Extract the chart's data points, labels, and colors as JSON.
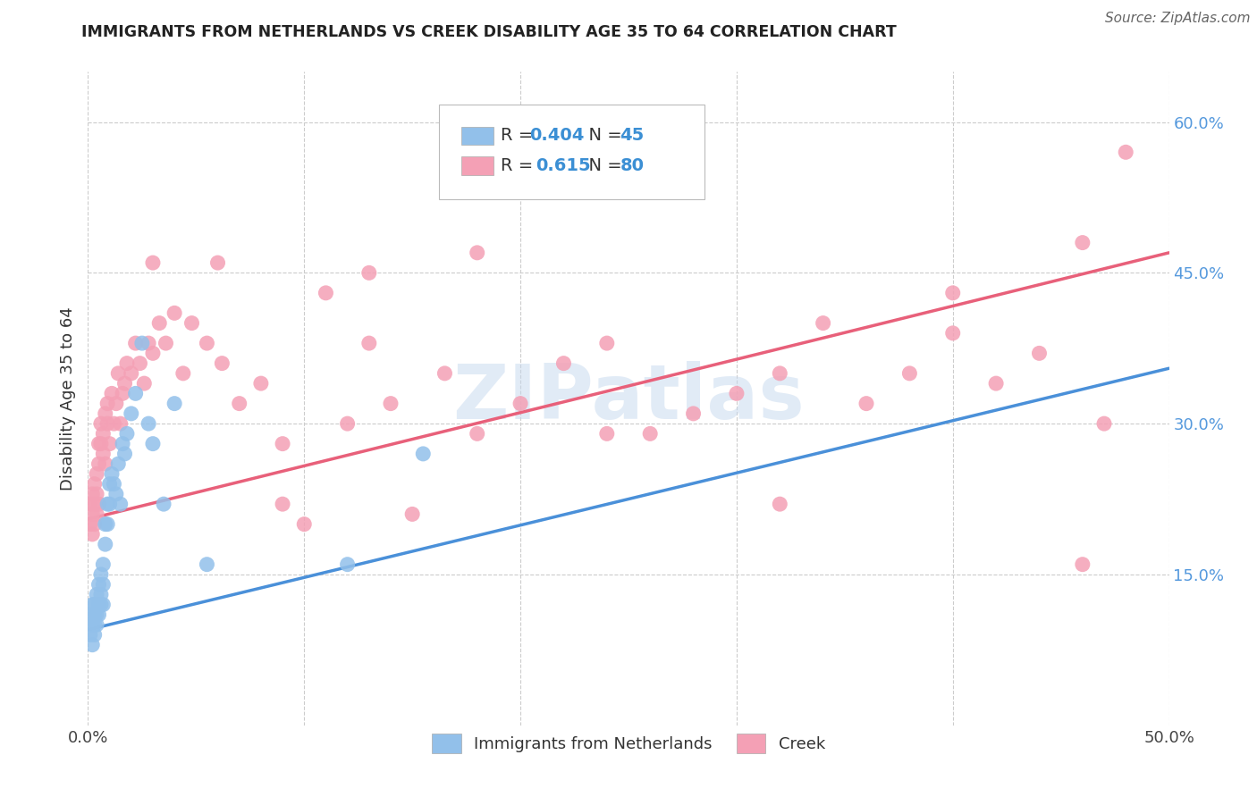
{
  "title": "IMMIGRANTS FROM NETHERLANDS VS CREEK DISABILITY AGE 35 TO 64 CORRELATION CHART",
  "source": "Source: ZipAtlas.com",
  "ylabel": "Disability Age 35 to 64",
  "xlim": [
    0.0,
    0.5
  ],
  "ylim": [
    0.0,
    0.65
  ],
  "xtick_positions": [
    0.0,
    0.1,
    0.2,
    0.3,
    0.4,
    0.5
  ],
  "xtick_labels": [
    "0.0%",
    "",
    "",
    "",
    "",
    "50.0%"
  ],
  "ytick_vals_right": [
    0.15,
    0.3,
    0.45,
    0.6
  ],
  "ytick_labels_right": [
    "15.0%",
    "30.0%",
    "45.0%",
    "60.0%"
  ],
  "legend_r1": "R = 0.404",
  "legend_n1": "N = 45",
  "legend_r2": "R =  0.615",
  "legend_n2": "N = 80",
  "color_netherlands": "#92C0EA",
  "color_creek": "#F4A0B5",
  "color_netherlands_line": "#4A90D9",
  "color_creek_line": "#E8607A",
  "nl_line_start_y": 0.095,
  "nl_line_end_y": 0.355,
  "cr_line_start_y": 0.205,
  "cr_line_end_y": 0.47,
  "netherlands_x": [
    0.001,
    0.001,
    0.002,
    0.002,
    0.002,
    0.003,
    0.003,
    0.003,
    0.003,
    0.004,
    0.004,
    0.004,
    0.005,
    0.005,
    0.005,
    0.006,
    0.006,
    0.006,
    0.007,
    0.007,
    0.007,
    0.008,
    0.008,
    0.009,
    0.009,
    0.01,
    0.01,
    0.011,
    0.012,
    0.013,
    0.014,
    0.015,
    0.016,
    0.017,
    0.018,
    0.02,
    0.022,
    0.025,
    0.028,
    0.03,
    0.035,
    0.04,
    0.055,
    0.12,
    0.155
  ],
  "netherlands_y": [
    0.09,
    0.11,
    0.1,
    0.12,
    0.08,
    0.1,
    0.12,
    0.11,
    0.09,
    0.13,
    0.11,
    0.1,
    0.14,
    0.12,
    0.11,
    0.15,
    0.13,
    0.12,
    0.16,
    0.14,
    0.12,
    0.2,
    0.18,
    0.22,
    0.2,
    0.24,
    0.22,
    0.25,
    0.24,
    0.23,
    0.26,
    0.22,
    0.28,
    0.27,
    0.29,
    0.31,
    0.33,
    0.38,
    0.3,
    0.28,
    0.22,
    0.32,
    0.16,
    0.16,
    0.27
  ],
  "creek_x": [
    0.001,
    0.001,
    0.002,
    0.002,
    0.002,
    0.003,
    0.003,
    0.003,
    0.004,
    0.004,
    0.004,
    0.005,
    0.005,
    0.005,
    0.006,
    0.006,
    0.007,
    0.007,
    0.008,
    0.008,
    0.009,
    0.009,
    0.01,
    0.011,
    0.012,
    0.013,
    0.014,
    0.015,
    0.016,
    0.017,
    0.018,
    0.02,
    0.022,
    0.024,
    0.026,
    0.028,
    0.03,
    0.033,
    0.036,
    0.04,
    0.044,
    0.048,
    0.055,
    0.062,
    0.07,
    0.08,
    0.09,
    0.1,
    0.11,
    0.12,
    0.13,
    0.14,
    0.15,
    0.165,
    0.18,
    0.2,
    0.22,
    0.24,
    0.26,
    0.28,
    0.3,
    0.32,
    0.34,
    0.36,
    0.38,
    0.4,
    0.42,
    0.44,
    0.46,
    0.48,
    0.03,
    0.06,
    0.09,
    0.13,
    0.18,
    0.24,
    0.32,
    0.4,
    0.46,
    0.47
  ],
  "creek_y": [
    0.2,
    0.22,
    0.21,
    0.19,
    0.23,
    0.22,
    0.24,
    0.2,
    0.23,
    0.25,
    0.21,
    0.26,
    0.28,
    0.22,
    0.28,
    0.3,
    0.27,
    0.29,
    0.31,
    0.26,
    0.3,
    0.32,
    0.28,
    0.33,
    0.3,
    0.32,
    0.35,
    0.3,
    0.33,
    0.34,
    0.36,
    0.35,
    0.38,
    0.36,
    0.34,
    0.38,
    0.37,
    0.4,
    0.38,
    0.41,
    0.35,
    0.4,
    0.38,
    0.36,
    0.32,
    0.34,
    0.22,
    0.2,
    0.43,
    0.3,
    0.38,
    0.32,
    0.21,
    0.35,
    0.29,
    0.32,
    0.36,
    0.38,
    0.29,
    0.31,
    0.33,
    0.35,
    0.4,
    0.32,
    0.35,
    0.43,
    0.34,
    0.37,
    0.48,
    0.57,
    0.46,
    0.46,
    0.28,
    0.45,
    0.47,
    0.29,
    0.22,
    0.39,
    0.16,
    0.3
  ]
}
